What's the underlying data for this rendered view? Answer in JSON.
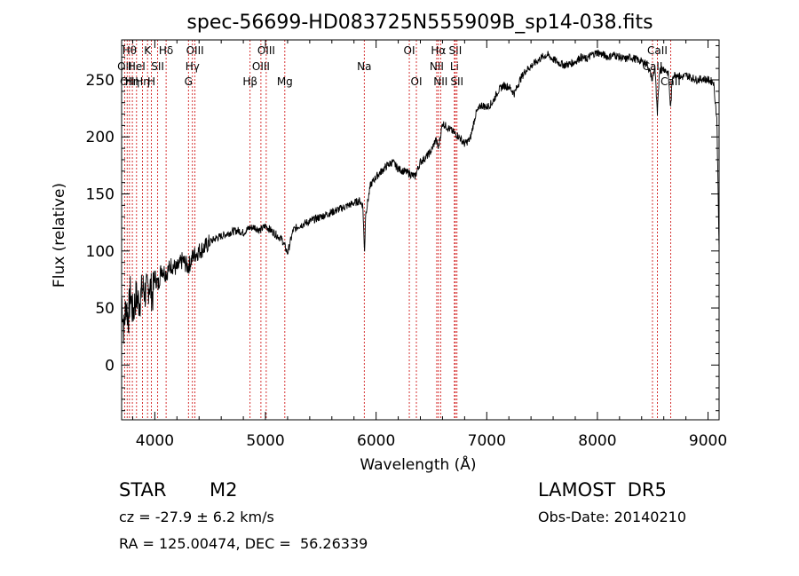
{
  "chart_data": {
    "type": "line",
    "title": "spec-56699-HD083725N555909B_sp14-038.fits",
    "xlabel": "Wavelength (Å)",
    "ylabel": "Flux (relative)",
    "xlim": [
      3700,
      9100
    ],
    "ylim": [
      -48,
      285
    ],
    "xticks": [
      4000,
      5000,
      6000,
      7000,
      8000,
      9000
    ],
    "yticks": [
      0,
      50,
      100,
      150,
      200,
      250
    ],
    "grid": false,
    "series": [
      {
        "values": [
          [
            3700,
            60
          ],
          [
            3720,
            30
          ],
          [
            3740,
            55
          ],
          [
            3760,
            40
          ],
          [
            3780,
            65
          ],
          [
            3800,
            45
          ],
          [
            3830,
            60
          ],
          [
            3860,
            55
          ],
          [
            3890,
            68
          ],
          [
            3920,
            62
          ],
          [
            3950,
            72
          ],
          [
            3980,
            60
          ],
          [
            4000,
            78
          ],
          [
            4030,
            70
          ],
          [
            4060,
            85
          ],
          [
            4100,
            80
          ],
          [
            4150,
            88
          ],
          [
            4200,
            84
          ],
          [
            4250,
            92
          ],
          [
            4300,
            86
          ],
          [
            4350,
            96
          ],
          [
            4400,
            100
          ],
          [
            4450,
            103
          ],
          [
            4500,
            108
          ],
          [
            4550,
            111
          ],
          [
            4600,
            113
          ],
          [
            4650,
            115
          ],
          [
            4700,
            117
          ],
          [
            4750,
            118
          ],
          [
            4800,
            116
          ],
          [
            4850,
            120
          ],
          [
            4900,
            121
          ],
          [
            4950,
            118
          ],
          [
            5000,
            122
          ],
          [
            5050,
            118
          ],
          [
            5100,
            114
          ],
          [
            5150,
            110
          ],
          [
            5200,
            98
          ],
          [
            5250,
            118
          ],
          [
            5300,
            122
          ],
          [
            5350,
            124
          ],
          [
            5400,
            126
          ],
          [
            5450,
            128
          ],
          [
            5500,
            130
          ],
          [
            5550,
            132
          ],
          [
            5600,
            134
          ],
          [
            5650,
            136
          ],
          [
            5700,
            138
          ],
          [
            5750,
            140
          ],
          [
            5800,
            142
          ],
          [
            5850,
            144
          ],
          [
            5880,
            140
          ],
          [
            5895,
            98
          ],
          [
            5905,
            132
          ],
          [
            5950,
            158
          ],
          [
            6000,
            165
          ],
          [
            6050,
            170
          ],
          [
            6100,
            175
          ],
          [
            6150,
            178
          ],
          [
            6200,
            172
          ],
          [
            6250,
            170
          ],
          [
            6300,
            168
          ],
          [
            6350,
            165
          ],
          [
            6400,
            178
          ],
          [
            6450,
            182
          ],
          [
            6500,
            188
          ],
          [
            6540,
            198
          ],
          [
            6563,
            190
          ],
          [
            6600,
            212
          ],
          [
            6650,
            208
          ],
          [
            6700,
            204
          ],
          [
            6750,
            200
          ],
          [
            6800,
            194
          ],
          [
            6850,
            198
          ],
          [
            6900,
            220
          ],
          [
            6950,
            228
          ],
          [
            7000,
            226
          ],
          [
            7050,
            230
          ],
          [
            7100,
            240
          ],
          [
            7150,
            245
          ],
          [
            7200,
            244
          ],
          [
            7250,
            238
          ],
          [
            7300,
            250
          ],
          [
            7350,
            258
          ],
          [
            7400,
            262
          ],
          [
            7450,
            266
          ],
          [
            7500,
            270
          ],
          [
            7550,
            272
          ],
          [
            7600,
            268
          ],
          [
            7650,
            265
          ],
          [
            7700,
            263
          ],
          [
            7750,
            264
          ],
          [
            7800,
            266
          ],
          [
            7850,
            270
          ],
          [
            7900,
            268
          ],
          [
            7950,
            272
          ],
          [
            8000,
            274
          ],
          [
            8050,
            272
          ],
          [
            8100,
            270
          ],
          [
            8150,
            272
          ],
          [
            8200,
            270
          ],
          [
            8250,
            268
          ],
          [
            8300,
            270
          ],
          [
            8350,
            268
          ],
          [
            8400,
            266
          ],
          [
            8450,
            264
          ],
          [
            8498,
            250
          ],
          [
            8520,
            262
          ],
          [
            8542,
            218
          ],
          [
            8560,
            258
          ],
          [
            8600,
            260
          ],
          [
            8640,
            256
          ],
          [
            8662,
            225
          ],
          [
            8680,
            254
          ],
          [
            8720,
            255
          ],
          [
            8760,
            252
          ],
          [
            8800,
            254
          ],
          [
            8850,
            252
          ],
          [
            8900,
            250
          ],
          [
            8950,
            251
          ],
          [
            9000,
            250
          ],
          [
            9050,
            248
          ],
          [
            9080,
            215
          ],
          [
            9090,
            160
          ],
          [
            9100,
            100
          ]
        ]
      }
    ],
    "lines": [
      {
        "wl": 3727,
        "label": "OII",
        "row": 1
      },
      {
        "wl": 3750,
        "label": "OII",
        "row": 2
      },
      {
        "wl": 3771,
        "label": "Hθ",
        "row": 0
      },
      {
        "wl": 3797,
        "label": "Hη",
        "row": 2
      },
      {
        "wl": 3835,
        "label": "HeI",
        "row": 1
      },
      {
        "wl": 3889,
        "label": "Hη",
        "row": 2
      },
      {
        "wl": 3934,
        "label": "K",
        "row": 0
      },
      {
        "wl": 3969,
        "label": "H",
        "row": 2
      },
      {
        "wl": 4026,
        "label": "SII",
        "row": 1
      },
      {
        "wl": 4102,
        "label": "Hδ",
        "row": 0
      },
      {
        "wl": 4304,
        "label": "G",
        "row": 2
      },
      {
        "wl": 4340,
        "label": "Hγ",
        "row": 1
      },
      {
        "wl": 4363,
        "label": "OIII",
        "row": 0
      },
      {
        "wl": 4861,
        "label": "Hβ",
        "row": 2
      },
      {
        "wl": 4959,
        "label": "OIII",
        "row": 1
      },
      {
        "wl": 5007,
        "label": "OIII",
        "row": 0
      },
      {
        "wl": 5175,
        "label": "Mg",
        "row": 2
      },
      {
        "wl": 5893,
        "label": "Na",
        "row": 1
      },
      {
        "wl": 6300,
        "label": "OI",
        "row": 0
      },
      {
        "wl": 6364,
        "label": "OI",
        "row": 2
      },
      {
        "wl": 6548,
        "label": "NII",
        "row": 1
      },
      {
        "wl": 6563,
        "label": "Hα",
        "row": 0
      },
      {
        "wl": 6583,
        "label": "NII",
        "row": 2
      },
      {
        "wl": 6708,
        "label": "Li",
        "row": 1
      },
      {
        "wl": 6716,
        "label": "SII",
        "row": 0
      },
      {
        "wl": 6731,
        "label": "SII",
        "row": 2
      },
      {
        "wl": 8498,
        "label": "CaII",
        "row": 1
      },
      {
        "wl": 8542,
        "label": "CaII",
        "row": 0
      },
      {
        "wl": 8662,
        "label": "CaII",
        "row": 2
      }
    ],
    "line_color": "#cc0000"
  },
  "info": {
    "class_label": "STAR",
    "subclass": "M2",
    "survey": "LAMOST  DR5",
    "redshift": "cz = -27.9 ± 6.2 km/s",
    "obs_date": "Obs-Date: 20140210",
    "coords": "RA = 125.00474, DEC =  56.26339"
  }
}
